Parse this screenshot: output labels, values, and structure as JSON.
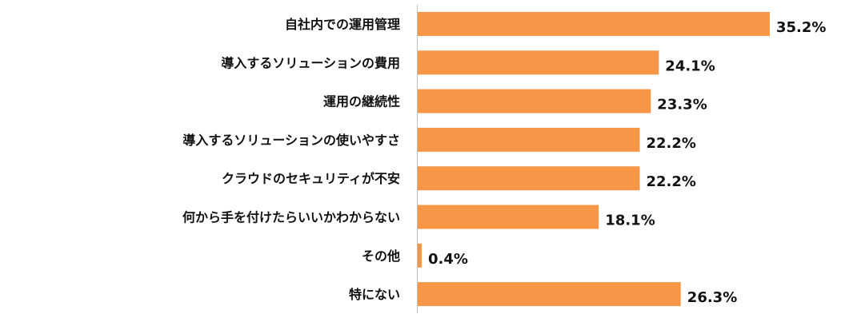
{
  "chart_data": {
    "type": "bar",
    "orientation": "horizontal",
    "categories": [
      "自社内での運用管理",
      "導入するソリューションの費用",
      "運用の継続性",
      "導入するソリューションの使いやすさ",
      "クラウドのセキュリティが不安",
      "何から手を付けたらいいかわからない",
      "その他",
      "特にない"
    ],
    "values": [
      35.2,
      24.1,
      23.3,
      22.2,
      22.2,
      18.1,
      0.4,
      26.3
    ],
    "value_labels": [
      "35.2%",
      "24.1%",
      "23.3%",
      "22.2%",
      "22.2%",
      "18.1%",
      "0.4%",
      "26.3%"
    ],
    "unit": "%",
    "xlim": [
      0,
      35.2
    ],
    "bar_color": "#F79646",
    "grid": false,
    "legend": "none"
  }
}
